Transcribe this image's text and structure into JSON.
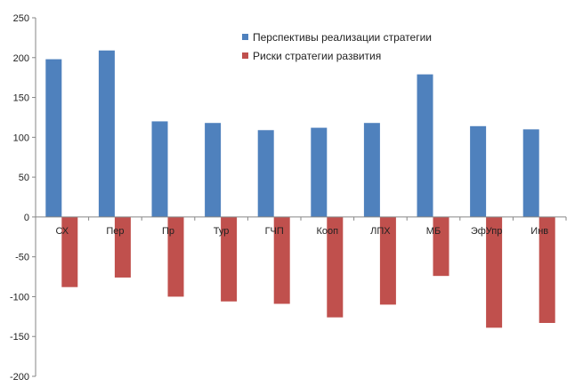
{
  "chart_data": {
    "type": "bar",
    "categories": [
      "СХ",
      "Пер",
      "Пр",
      "Тур",
      "ГЧП",
      "Кооп",
      "ЛПХ",
      "МБ",
      "ЭфУпр",
      "Инв"
    ],
    "series": [
      {
        "name": "Перспективы реализации стратегии",
        "color": "#4F81BD",
        "values": [
          198,
          209,
          120,
          118,
          109,
          112,
          118,
          179,
          114,
          110
        ]
      },
      {
        "name": "Риски стратегии развития",
        "color": "#C0504D",
        "values": [
          -88,
          -76,
          -100,
          -106,
          -109,
          -126,
          -110,
          -74,
          -139,
          -133
        ]
      }
    ],
    "ylim": [
      -200,
      250
    ],
    "yticks": [
      250,
      200,
      150,
      100,
      50,
      0,
      -50,
      -100,
      -150,
      -200
    ],
    "grid": false,
    "legend_position": "top-center"
  }
}
